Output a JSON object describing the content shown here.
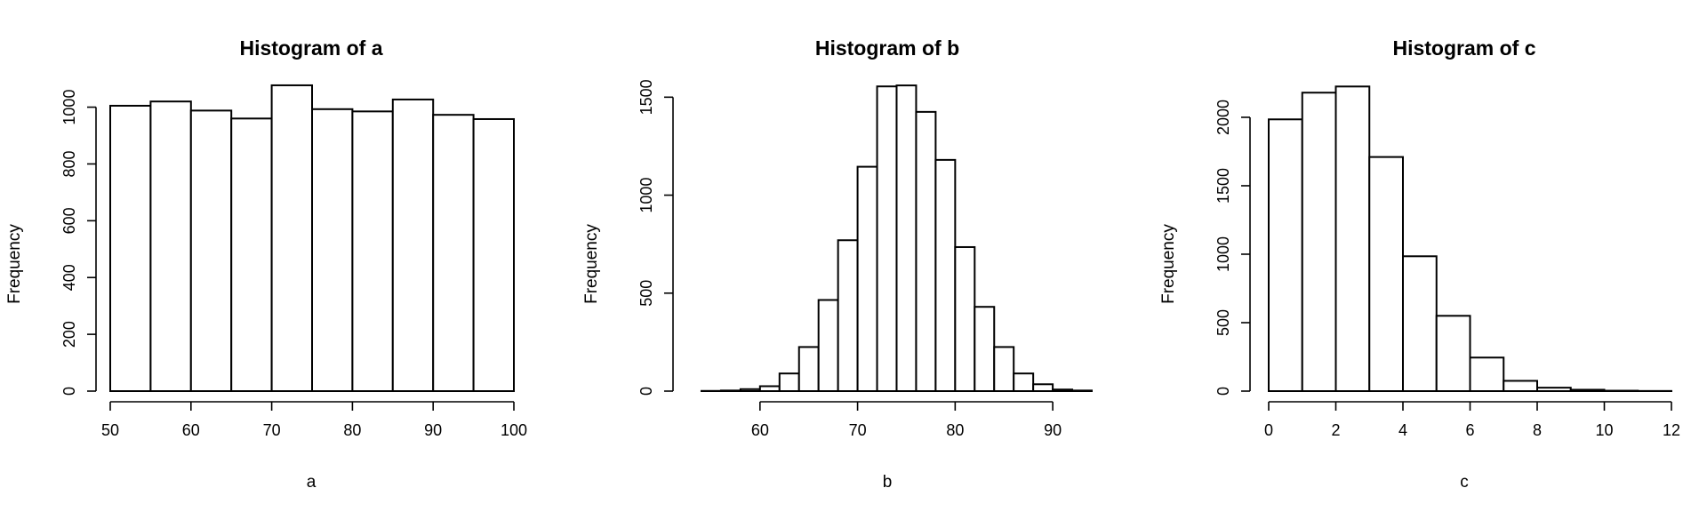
{
  "chart_data": [
    {
      "type": "bar",
      "title": "Histogram of a",
      "xlabel": "a",
      "ylabel": "Frequency",
      "x_ticks": [
        50,
        60,
        70,
        80,
        90,
        100
      ],
      "y_ticks": [
        0,
        200,
        400,
        600,
        800,
        1000
      ],
      "xlim": [
        50,
        100
      ],
      "ylim": [
        0,
        1080
      ],
      "bin_edges": [
        50,
        55,
        60,
        65,
        70,
        75,
        80,
        85,
        90,
        95,
        100
      ],
      "values": [
        1005,
        1020,
        988,
        960,
        1077,
        993,
        985,
        1027,
        973,
        958
      ],
      "grid": false
    },
    {
      "type": "bar",
      "title": "Histogram of b",
      "xlabel": "b",
      "ylabel": "Frequency",
      "x_ticks": [
        60,
        70,
        80,
        90
      ],
      "y_ticks": [
        0,
        500,
        1000,
        1500
      ],
      "xlim": [
        53,
        94
      ],
      "ylim": [
        0,
        1565
      ],
      "bin_edges": [
        54,
        56,
        58,
        60,
        62,
        64,
        66,
        68,
        70,
        72,
        74,
        76,
        78,
        80,
        82,
        84,
        86,
        88,
        90,
        92,
        94
      ],
      "values": [
        1,
        3,
        10,
        25,
        90,
        225,
        465,
        770,
        1145,
        1555,
        1560,
        1425,
        1180,
        735,
        430,
        225,
        90,
        35,
        8,
        3
      ],
      "grid": false
    },
    {
      "type": "bar",
      "title": "Histogram of c",
      "xlabel": "c",
      "ylabel": "Frequency",
      "x_ticks": [
        0,
        2,
        4,
        6,
        8,
        10,
        12
      ],
      "y_ticks": [
        0,
        500,
        1000,
        1500,
        2000
      ],
      "xlim": [
        0,
        12
      ],
      "ylim": [
        0,
        2240
      ],
      "bin_edges": [
        0,
        1,
        2,
        3,
        4,
        5,
        6,
        7,
        8,
        9,
        10,
        11,
        12
      ],
      "values": [
        1985,
        2180,
        2225,
        1710,
        985,
        550,
        245,
        75,
        25,
        10,
        3,
        1
      ],
      "grid": false
    }
  ]
}
